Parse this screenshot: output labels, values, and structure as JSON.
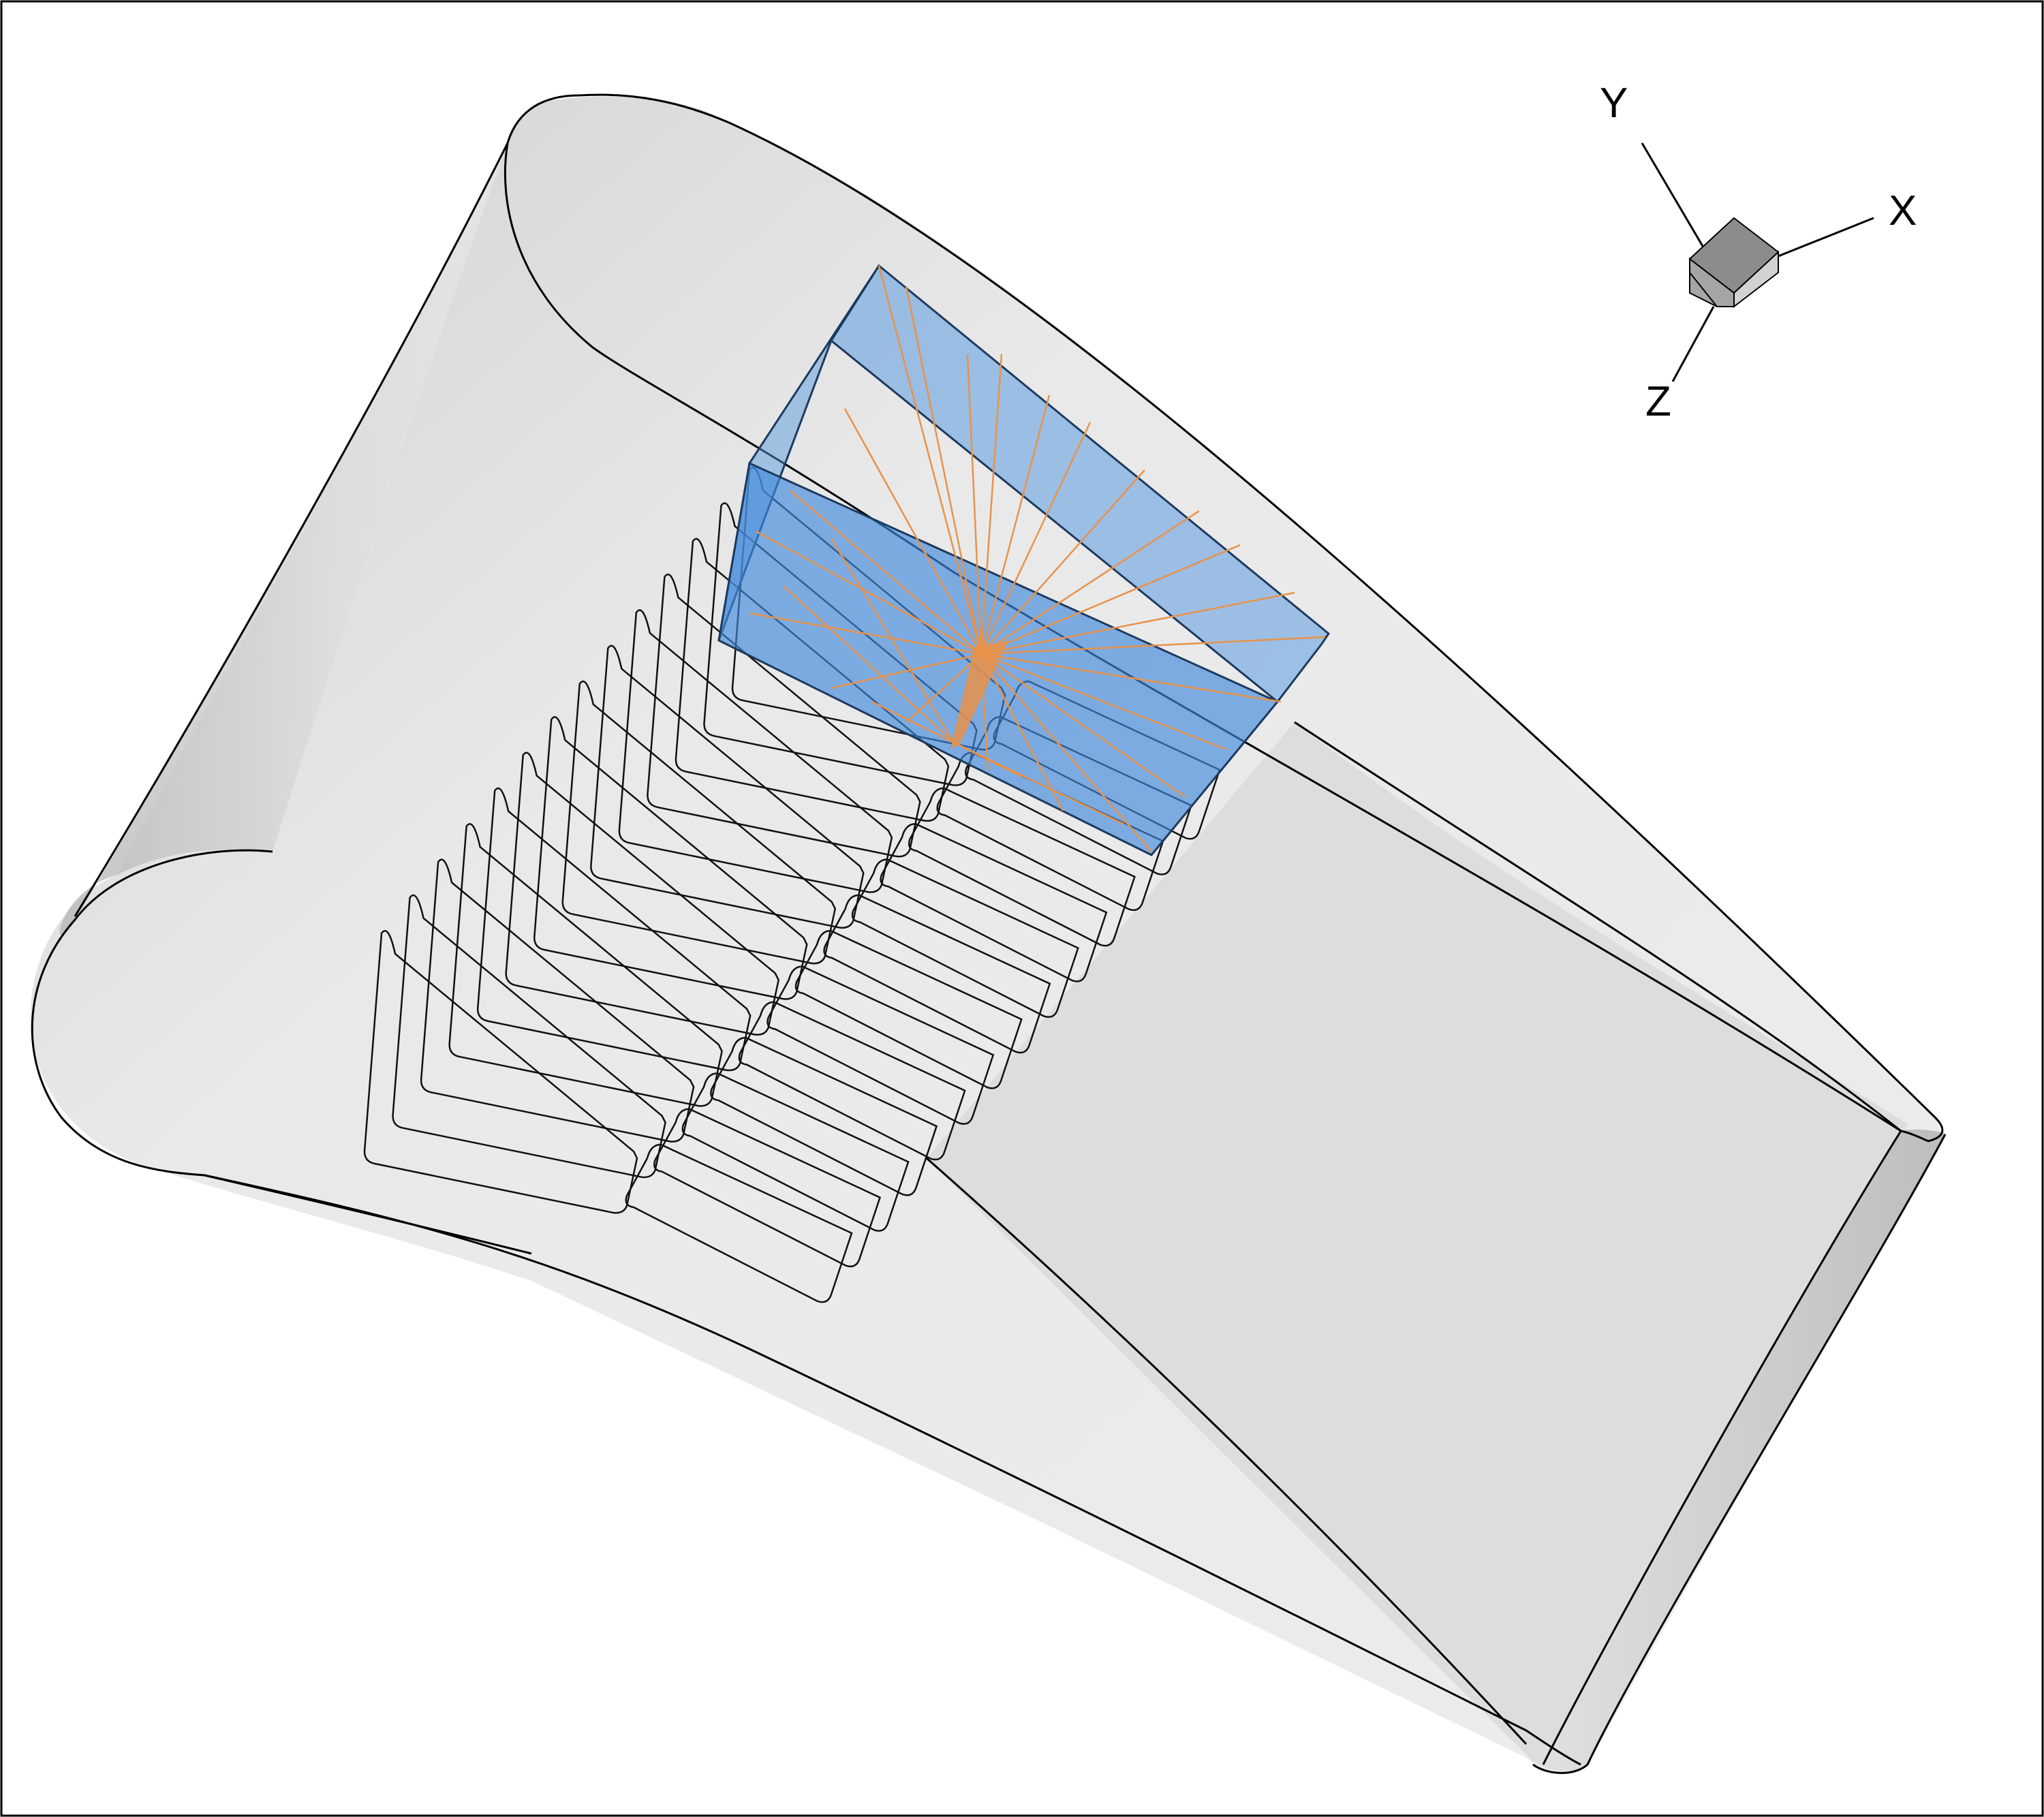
{
  "axes_triad": {
    "x_label": "X",
    "y_label": "Y",
    "z_label": "Z"
  },
  "scene": {
    "body_fill": "#e6e6e6",
    "body_shadow": "#cfcfcf",
    "outline_color": "#000000",
    "highlight_box_color": "#5b9be0",
    "highlight_line_color": "#e8924a",
    "rib_count": 14
  }
}
